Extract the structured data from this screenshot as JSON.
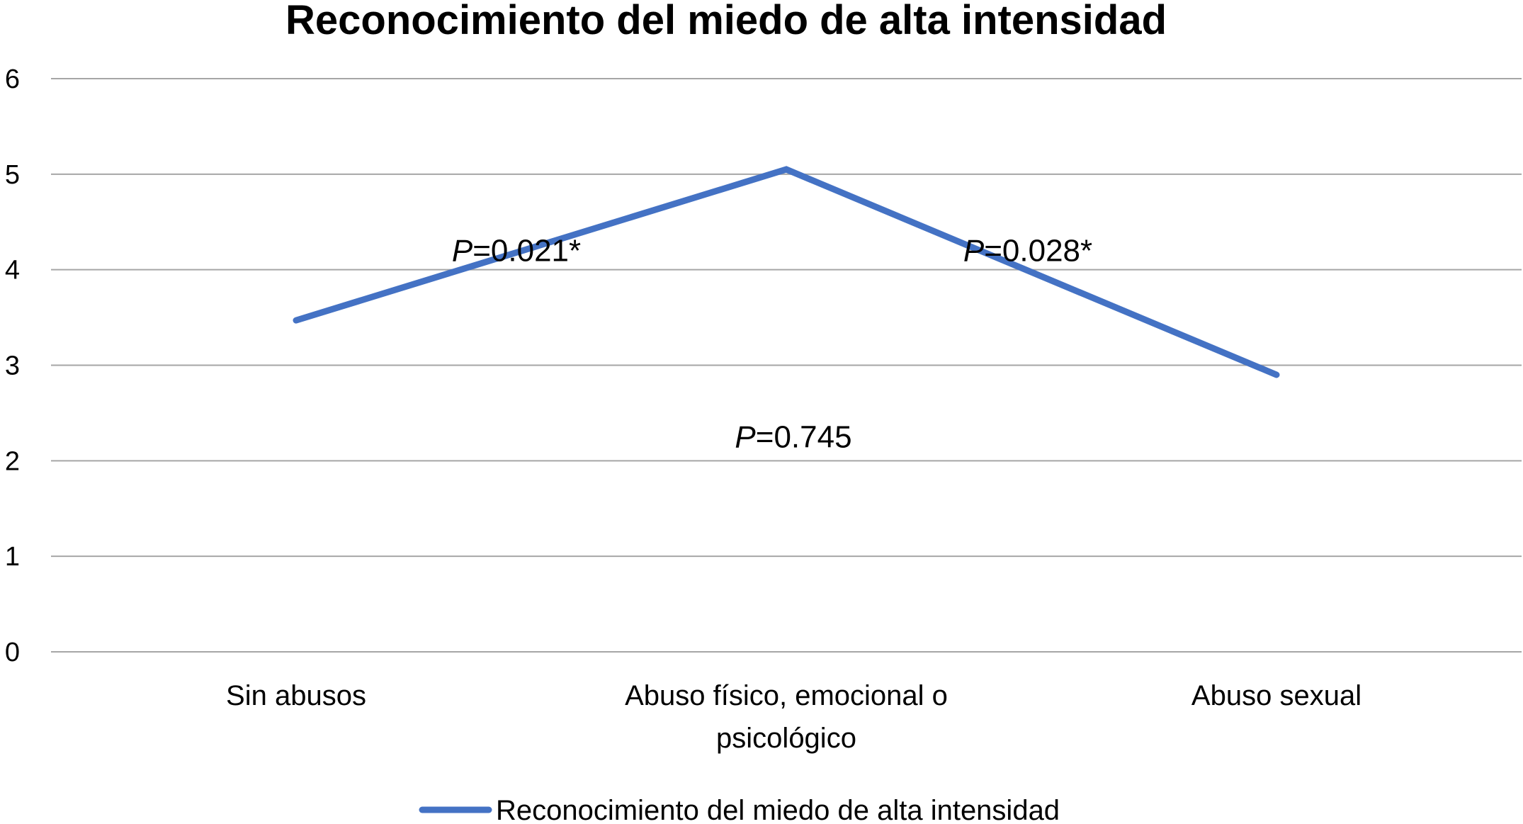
{
  "chart_data": {
    "type": "line",
    "title": "Reconocimiento del miedo de alta intensidad",
    "categories": [
      [
        "Sin abusos"
      ],
      [
        "Abuso físico, emocional o",
        "psicológico"
      ],
      [
        "Abuso sexual"
      ]
    ],
    "series": [
      {
        "name": "Reconocimiento del miedo de alta intensidad",
        "values": [
          3.47,
          5.05,
          2.9
        ],
        "color": "#4472C4"
      }
    ],
    "ylim": [
      0,
      6
    ],
    "yticks": [
      0,
      1,
      2,
      3,
      4,
      5,
      6
    ],
    "grid": true,
    "legend_position": "bottom",
    "annotations": [
      {
        "prefix": "P",
        "text": "=0.021*",
        "between": [
          0,
          1
        ],
        "y": 4.2
      },
      {
        "prefix": "P",
        "text": "=0.028*",
        "between": [
          1,
          2
        ],
        "y": 4.2
      },
      {
        "prefix": "P",
        "text": "=0.745",
        "between": [
          0,
          2
        ],
        "y": 2.25
      }
    ]
  }
}
